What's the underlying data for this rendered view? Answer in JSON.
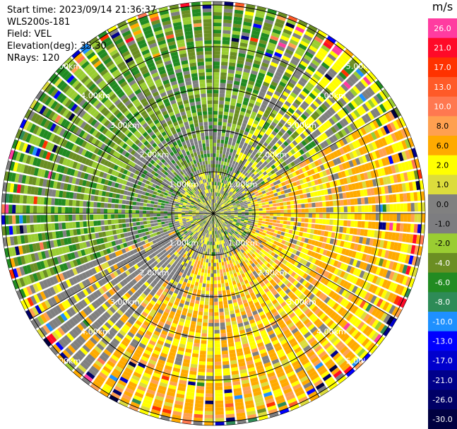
{
  "header": {
    "start_time": "Start time: 2023/09/14 21:36:37",
    "instrument": "WLS200s-181",
    "field": "Field: VEL",
    "elevation": "Elevation(deg): 35.30",
    "nrays": "NRays: 120"
  },
  "colorbar": {
    "unit": "m/s",
    "levels": [
      {
        "label": "26.0",
        "color": "#ff3ca0"
      },
      {
        "label": "21.0",
        "color": "#ff0a28"
      },
      {
        "label": "17.0",
        "color": "#ff3200"
      },
      {
        "label": "13.0",
        "color": "#ff5a28"
      },
      {
        "label": "10.0",
        "color": "#ff7850"
      },
      {
        "label": "8.0",
        "color": "#ffa050"
      },
      {
        "label": "6.0",
        "color": "#ffaa00"
      },
      {
        "label": "2.0",
        "color": "#ffff00"
      },
      {
        "label": "1.0",
        "color": "#dcdc3c"
      },
      {
        "label": "0.0",
        "color": "#808080"
      },
      {
        "label": "-1.0",
        "color": "#7d7d80"
      },
      {
        "label": "-2.0",
        "color": "#9acd32"
      },
      {
        "label": "-4.0",
        "color": "#6b8e23"
      },
      {
        "label": "-6.0",
        "color": "#228b22"
      },
      {
        "label": "-8.0",
        "color": "#2e8b57"
      },
      {
        "label": "-10.0",
        "color": "#1e90ff"
      },
      {
        "label": "-13.0",
        "color": "#0000ff"
      },
      {
        "label": "-17.0",
        "color": "#0000cd"
      },
      {
        "label": "-21.0",
        "color": "#00008b"
      },
      {
        "label": "-26.0",
        "color": "#000066"
      },
      {
        "label": "-30.0",
        "color": "#000040"
      }
    ]
  },
  "chart_data": {
    "type": "heatmap",
    "projection": "polar PPI",
    "rays": 120,
    "range_rings_km": [
      "1.00km",
      "2.00km",
      "3.00km",
      "4.00km",
      "5.00km"
    ],
    "ring_label_quadrants": [
      "upper-left",
      "upper-right",
      "lower-right",
      "lower-left"
    ],
    "spoke_angles_deg": [
      0,
      30,
      60,
      90,
      120,
      150,
      180,
      210,
      240,
      270,
      300,
      330
    ],
    "velocity_pattern": {
      "near_range_core_0_to_1km": "mixed gray/green and yellow",
      "northwest_sector": "negative velocities (-2 to -8 m/s), green",
      "southeast_sector": "positive velocities (2 to 8 m/s), yellow/orange",
      "far_range_5km_plus": "noisy mixed colors"
    }
  }
}
